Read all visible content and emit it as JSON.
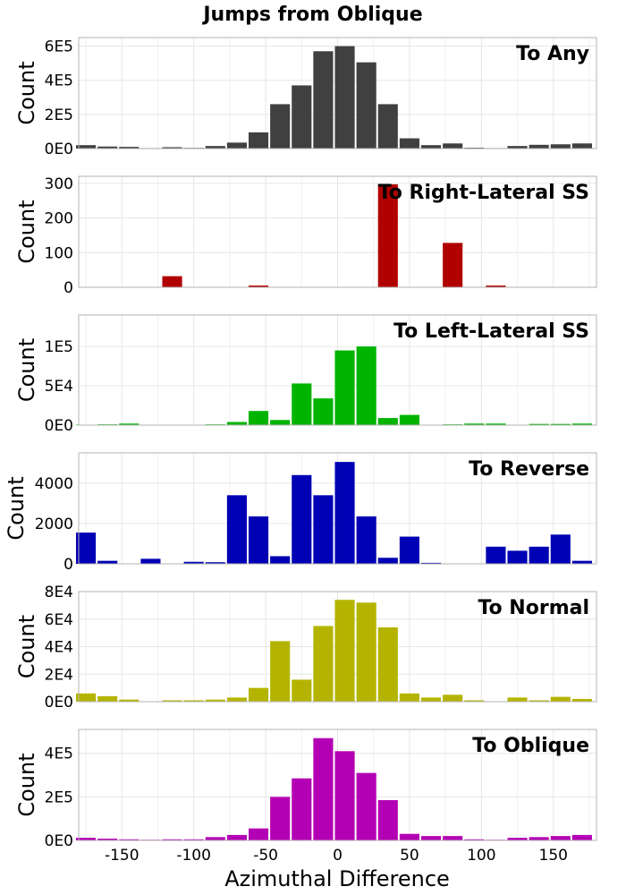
{
  "figure": {
    "title": "Jumps from Oblique",
    "xlabel": "Azimuthal Difference",
    "x_ticks": [
      {
        "value": -150,
        "label": "-150"
      },
      {
        "value": -100,
        "label": "-100"
      },
      {
        "value": -50,
        "label": "-50"
      },
      {
        "value": 0,
        "label": "0"
      },
      {
        "value": 50,
        "label": "50"
      },
      {
        "value": 100,
        "label": "100"
      },
      {
        "value": 150,
        "label": "150"
      }
    ]
  },
  "chart_data": [
    {
      "type": "bar",
      "label": "To Any",
      "ylabel": "Count",
      "color": "#404040",
      "xlim": [
        -180,
        180
      ],
      "ylim": [
        0,
        650000
      ],
      "y_ticks": [
        {
          "value": 0,
          "label": "0E0"
        },
        {
          "value": 200000,
          "label": "2E5"
        },
        {
          "value": 400000,
          "label": "4E5"
        },
        {
          "value": 600000,
          "label": "6E5"
        }
      ],
      "bin_centers": [
        -175,
        -160,
        -145,
        -130,
        -115,
        -100,
        -85,
        -70,
        -55,
        -40,
        -25,
        -10,
        5,
        20,
        35,
        50,
        65,
        80,
        95,
        110,
        125,
        140,
        155,
        170
      ],
      "values": [
        20000,
        12000,
        10000,
        3000,
        8000,
        4000,
        15000,
        35000,
        95000,
        260000,
        370000,
        570000,
        600000,
        505000,
        260000,
        60000,
        20000,
        30000,
        5000,
        3000,
        15000,
        22000,
        25000,
        30000
      ]
    },
    {
      "type": "bar",
      "label": "To Right-Lateral SS",
      "ylabel": "Count",
      "color": "#b00000",
      "xlim": [
        -180,
        180
      ],
      "ylim": [
        0,
        320
      ],
      "y_ticks": [
        {
          "value": 0,
          "label": "0"
        },
        {
          "value": 100,
          "label": "100"
        },
        {
          "value": 200,
          "label": "200"
        },
        {
          "value": 300,
          "label": "300"
        }
      ],
      "bin_centers": [
        -175,
        -160,
        -145,
        -130,
        -115,
        -100,
        -85,
        -70,
        -55,
        -40,
        -25,
        -10,
        5,
        20,
        35,
        50,
        65,
        80,
        95,
        110,
        125,
        140,
        155,
        170
      ],
      "values": [
        0,
        0,
        0,
        0,
        32,
        0,
        0,
        0,
        5,
        0,
        0,
        0,
        0,
        0,
        297,
        0,
        0,
        128,
        0,
        5,
        0,
        0,
        0,
        0
      ]
    },
    {
      "type": "bar",
      "label": "To Left-Lateral SS",
      "ylabel": "Count",
      "color": "#00b400",
      "xlim": [
        -180,
        180
      ],
      "ylim": [
        0,
        140000
      ],
      "y_ticks": [
        {
          "value": 0,
          "label": "0E0"
        },
        {
          "value": 50000,
          "label": "5E4"
        },
        {
          "value": 100000,
          "label": "1E5"
        }
      ],
      "bin_centers": [
        -175,
        -160,
        -145,
        -130,
        -115,
        -100,
        -85,
        -70,
        -55,
        -40,
        -25,
        -10,
        5,
        20,
        35,
        50,
        65,
        80,
        95,
        110,
        125,
        140,
        155,
        170
      ],
      "values": [
        500,
        1000,
        2000,
        0,
        0,
        0,
        1000,
        4000,
        18000,
        6500,
        53000,
        34000,
        95000,
        100000,
        9000,
        13000,
        0,
        1000,
        2000,
        2000,
        0,
        1500,
        1500,
        2000
      ]
    },
    {
      "type": "bar",
      "label": "To Reverse",
      "ylabel": "Count",
      "color": "#0000b4",
      "xlim": [
        -180,
        180
      ],
      "ylim": [
        0,
        5500
      ],
      "y_ticks": [
        {
          "value": 0,
          "label": "0"
        },
        {
          "value": 2000,
          "label": "2000"
        },
        {
          "value": 4000,
          "label": "4000"
        }
      ],
      "bin_centers": [
        -175,
        -160,
        -145,
        -130,
        -115,
        -100,
        -85,
        -70,
        -55,
        -40,
        -25,
        -10,
        5,
        20,
        35,
        50,
        65,
        80,
        95,
        110,
        125,
        140,
        155,
        170
      ],
      "values": [
        1550,
        150,
        0,
        250,
        0,
        100,
        80,
        3400,
        2350,
        380,
        4400,
        3400,
        5050,
        2350,
        300,
        1350,
        50,
        0,
        0,
        850,
        650,
        850,
        1450,
        150
      ]
    },
    {
      "type": "bar",
      "label": "To Normal",
      "ylabel": "Count",
      "color": "#b4b400",
      "xlim": [
        -180,
        180
      ],
      "ylim": [
        0,
        80000
      ],
      "y_ticks": [
        {
          "value": 0,
          "label": "0E0"
        },
        {
          "value": 20000,
          "label": "2E4"
        },
        {
          "value": 40000,
          "label": "4E4"
        },
        {
          "value": 60000,
          "label": "6E4"
        },
        {
          "value": 80000,
          "label": "8E4"
        }
      ],
      "bin_centers": [
        -175,
        -160,
        -145,
        -130,
        -115,
        -100,
        -85,
        -70,
        -55,
        -40,
        -25,
        -10,
        5,
        20,
        35,
        50,
        65,
        80,
        95,
        110,
        125,
        140,
        155,
        170
      ],
      "values": [
        6000,
        4000,
        1500,
        0,
        1000,
        1000,
        1500,
        3000,
        10000,
        44000,
        16000,
        55000,
        74000,
        72000,
        54000,
        6000,
        3000,
        5000,
        1000,
        0,
        3000,
        1000,
        3500,
        2000
      ]
    },
    {
      "type": "bar",
      "label": "To Oblique",
      "ylabel": "Count",
      "color": "#b400b4",
      "xlim": [
        -180,
        180
      ],
      "ylim": [
        0,
        510000
      ],
      "y_ticks": [
        {
          "value": 0,
          "label": "0E0"
        },
        {
          "value": 200000,
          "label": "2E5"
        },
        {
          "value": 400000,
          "label": "4E5"
        }
      ],
      "bin_centers": [
        -175,
        -160,
        -145,
        -130,
        -115,
        -100,
        -85,
        -70,
        -55,
        -40,
        -25,
        -10,
        5,
        20,
        35,
        50,
        65,
        80,
        95,
        110,
        125,
        140,
        155,
        170
      ],
      "values": [
        12000,
        8000,
        5000,
        3000,
        5000,
        5000,
        15000,
        25000,
        55000,
        200000,
        285000,
        470000,
        410000,
        310000,
        185000,
        30000,
        20000,
        20000,
        5000,
        3000,
        12000,
        15000,
        20000,
        25000
      ]
    }
  ]
}
